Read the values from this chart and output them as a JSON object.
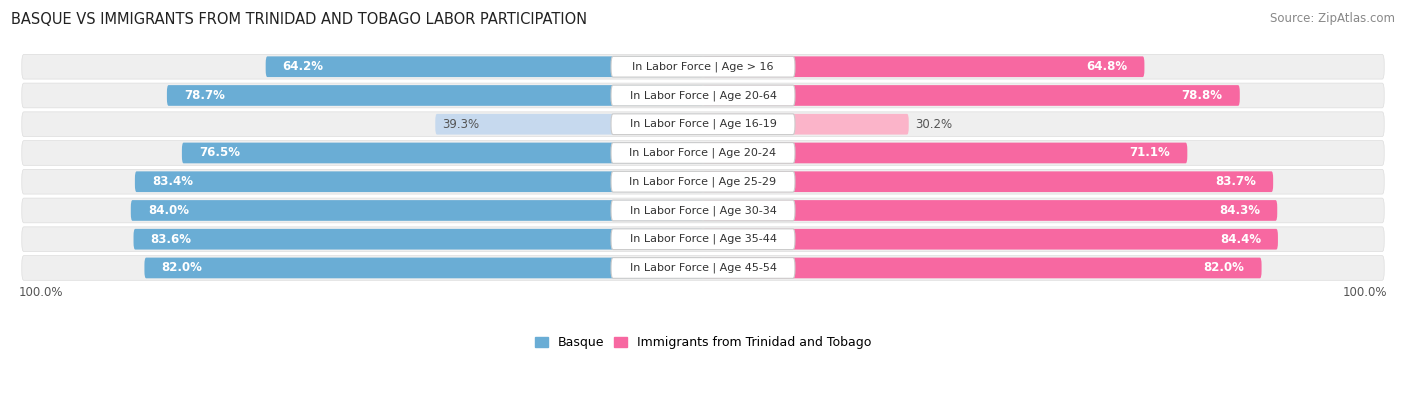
{
  "title": "BASQUE VS IMMIGRANTS FROM TRINIDAD AND TOBAGO LABOR PARTICIPATION",
  "source": "Source: ZipAtlas.com",
  "categories": [
    "In Labor Force | Age > 16",
    "In Labor Force | Age 20-64",
    "In Labor Force | Age 16-19",
    "In Labor Force | Age 20-24",
    "In Labor Force | Age 25-29",
    "In Labor Force | Age 30-34",
    "In Labor Force | Age 35-44",
    "In Labor Force | Age 45-54"
  ],
  "basque_values": [
    64.2,
    78.7,
    39.3,
    76.5,
    83.4,
    84.0,
    83.6,
    82.0
  ],
  "immigrant_values": [
    64.8,
    78.8,
    30.2,
    71.1,
    83.7,
    84.3,
    84.4,
    82.0
  ],
  "basque_color": "#6aadd5",
  "basque_color_light": "#c6d9ee",
  "immigrant_color": "#f768a1",
  "immigrant_color_light": "#fbb4c9",
  "label_color_dark": "#555555",
  "label_color_white": "#ffffff",
  "bg_row_color": "#efefef",
  "max_val": 100.0,
  "legend_basque": "Basque",
  "legend_immigrant": "Immigrants from Trinidad and Tobago",
  "title_fontsize": 10.5,
  "source_fontsize": 8.5,
  "bar_label_fontsize": 8.5,
  "category_fontsize": 8.0,
  "legend_fontsize": 9.0,
  "low_threshold": 50
}
